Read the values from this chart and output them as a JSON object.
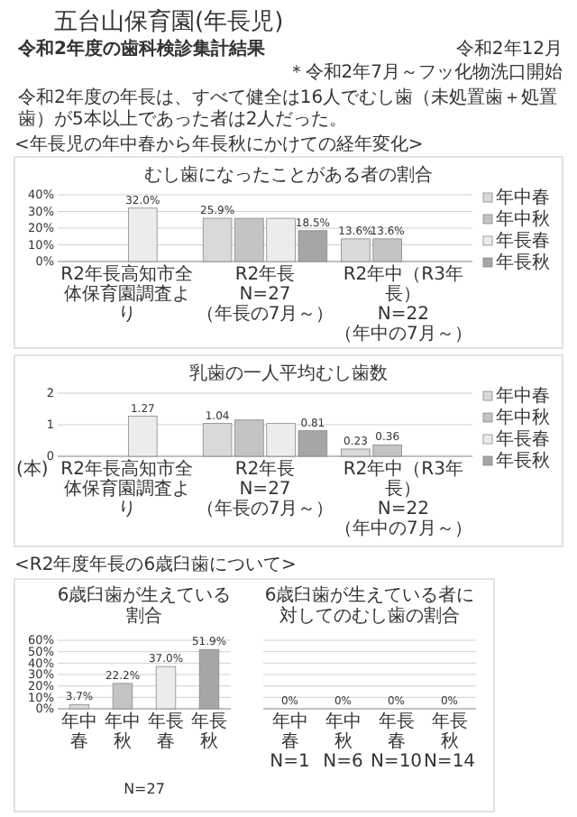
{
  "chart_data": [
    {
      "type": "bar",
      "title": "むし歯になったことがある者の割合",
      "categories": [
        "R2年長高知市全体保育園調査より",
        "R2年長\nN=27\n（年長の7月～）",
        "R2年中（R3年長）\nN=22\n（年中の7月～）"
      ],
      "series": [
        {
          "name": "年中春",
          "color": "#d9d9d9",
          "values": [
            null,
            25.9,
            13.6
          ],
          "value_labels": [
            null,
            "25.9%",
            "13.6%"
          ]
        },
        {
          "name": "年中秋",
          "color": "#c4c4c4",
          "values": [
            null,
            25.9,
            13.6
          ],
          "value_labels": [
            null,
            null,
            "13.6%"
          ]
        },
        {
          "name": "年長春",
          "color": "#ececec",
          "values": [
            32.0,
            25.9,
            null
          ],
          "value_labels": [
            "32.0%",
            null,
            null
          ]
        },
        {
          "name": "年長秋",
          "color": "#a6a6a6",
          "values": [
            null,
            18.5,
            null
          ],
          "value_labels": [
            null,
            "18.5%",
            null
          ]
        }
      ],
      "ylim": [
        0,
        40
      ],
      "yticks": [
        {
          "value": 0,
          "label": "0%"
        },
        {
          "value": 10,
          "label": "10%"
        },
        {
          "value": 20,
          "label": "20%"
        },
        {
          "value": 30,
          "label": "30%"
        },
        {
          "value": 40,
          "label": "40%"
        }
      ],
      "grid": "y",
      "legend": "right",
      "annotations": [
        "五台山保育園(年長児)",
        "＊令和2年7月～フッ化物洗口開始",
        "令和2年度の歯科検診集計結果",
        "令和2年12月",
        "令和2年度の年長は、すべて健全は16人でむし歯（未処置歯＋処置歯）が5本以上であった者は2人だった。",
        "<年長児の年中春から年長秋にかけての経年変化>"
      ]
    },
    {
      "type": "bar",
      "title": "乳歯の一人平均むし歯数",
      "ylabel": "(本)",
      "categories": [
        "R2年長高知市全体保育園調査より",
        "R2年長\nN=27\n（年長の7月～）",
        "R2年中（R3年長）\nN=22\n（年中の7月～）"
      ],
      "series": [
        {
          "name": "年中春",
          "color": "#d9d9d9",
          "values": [
            null,
            1.04,
            0.23
          ],
          "value_labels": [
            null,
            "1.04",
            "0.23"
          ]
        },
        {
          "name": "年中秋",
          "color": "#c4c4c4",
          "values": [
            null,
            1.15,
            0.36
          ],
          "value_labels": [
            null,
            null,
            "0.36"
          ]
        },
        {
          "name": "年長春",
          "color": "#ececec",
          "values": [
            1.27,
            1.04,
            null
          ],
          "value_labels": [
            "1.27",
            null,
            null
          ]
        },
        {
          "name": "年長秋",
          "color": "#a6a6a6",
          "values": [
            null,
            0.81,
            null
          ],
          "value_labels": [
            null,
            "0.81",
            null
          ]
        }
      ],
      "ylim": [
        0,
        2
      ],
      "yticks": [
        0,
        1,
        2
      ],
      "grid": "y",
      "legend": "right"
    },
    {
      "type": "bar",
      "title": "6歳臼歯が生えている割合",
      "xlabel": "N=27",
      "categories": [
        "年中春",
        "年中秋",
        "年長春",
        "年長秋"
      ],
      "values": [
        3.7,
        22.2,
        37.0,
        51.9
      ],
      "colors": [
        "#d9d9d9",
        "#c4c4c4",
        "#ececec",
        "#a6a6a6"
      ],
      "value_labels": [
        "3.7%",
        "22.2%",
        "37.0%",
        "51.9%"
      ],
      "ylim": [
        0,
        60
      ],
      "yticks": [
        {
          "value": 0,
          "label": "0%"
        },
        {
          "value": 10,
          "label": "10%"
        },
        {
          "value": 20,
          "label": "20%"
        },
        {
          "value": 30,
          "label": "30%"
        },
        {
          "value": 40,
          "label": "40%"
        },
        {
          "value": 50,
          "label": "50%"
        },
        {
          "value": 60,
          "label": "60%"
        }
      ],
      "grid": "y",
      "annotations": [
        "<R2年度年長の6歳臼歯について>"
      ]
    },
    {
      "type": "bar",
      "title": "6歳臼歯が生えている者に対してのむし歯の割合",
      "categories": [
        "年中春\nN=1",
        "年中秋\nN=6",
        "年長春\nN=10",
        "年長秋\nN=14"
      ],
      "values": [
        0,
        0,
        0,
        0
      ],
      "colors": [
        "#d9d9d9",
        "#c4c4c4",
        "#ececec",
        "#a6a6a6"
      ],
      "value_labels": [
        "0%",
        "0%",
        "0%",
        "0%"
      ],
      "ylim": [
        0,
        60
      ],
      "yticks": [
        0,
        10,
        20,
        30,
        40,
        50,
        60
      ],
      "grid": "y",
      "tick_labels": "x"
    }
  ]
}
